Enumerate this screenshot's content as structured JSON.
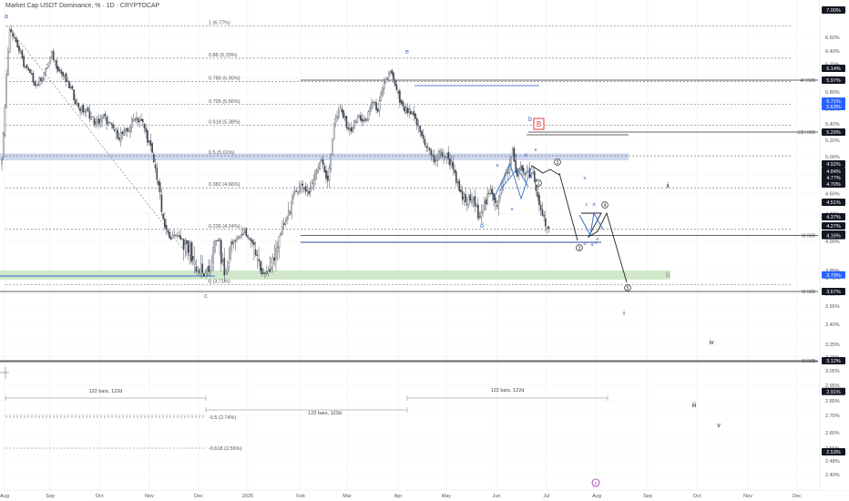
{
  "title": "Market Cap USDT Dominance, % · 1D · CRYPTOCAP",
  "chart_data": {
    "type": "candlestick",
    "title": "Market Cap USDT Dominance, % · 1D · CRYPTOCAP",
    "xlabel": "",
    "ylabel": "",
    "x_ticks": [
      "Aug",
      "Sep",
      "Oct",
      "Nov",
      "Dec",
      "2025",
      "Feb",
      "Mar",
      "Apr",
      "May",
      "Jun",
      "Jul",
      "Aug",
      "Sep",
      "Oct",
      "Nov",
      "Dec"
    ],
    "y_ticks": [
      "6.60%",
      "6.40%",
      "6.20%",
      "6.00%",
      "5.80%",
      "5.60%",
      "5.40%",
      "5.20%",
      "5.00%",
      "4.80%",
      "4.60%",
      "4.40%",
      "4.20%",
      "4.00%",
      "3.85%",
      "3.75%",
      "3.65%",
      "3.55%",
      "3.40%",
      "3.25%",
      "3.15%",
      "3.05%",
      "2.95%",
      "2.85%",
      "2.75%",
      "2.65%",
      "2.55%",
      "2.48%",
      "2.40%"
    ],
    "price_tags": [
      {
        "label": "7.00%",
        "style": "dark"
      },
      {
        "label": "6.14%",
        "style": "dark"
      },
      {
        "label": "5.97%",
        "style": "dark"
      },
      {
        "label": "5.71%",
        "style": "blue"
      },
      {
        "label": "5.63%",
        "style": "blue"
      },
      {
        "label": "5.29%",
        "style": "dark"
      },
      {
        "label": "4.92%",
        "style": "dark"
      },
      {
        "label": "4.84%",
        "style": "dark"
      },
      {
        "label": "4.77%",
        "style": "dark"
      },
      {
        "label": "4.70%",
        "style": "dark"
      },
      {
        "label": "4.51%",
        "style": "dark"
      },
      {
        "label": "4.37%",
        "style": "dark"
      },
      {
        "label": "4.27%",
        "style": "dark"
      },
      {
        "label": "4.20%",
        "style": "dark"
      },
      {
        "label": "4.16%",
        "style": "dark"
      },
      {
        "label": "3.79%",
        "style": "blue"
      },
      {
        "label": "3.67%",
        "style": "dark"
      },
      {
        "label": "3.12%",
        "style": "dark"
      },
      {
        "label": "2.91%",
        "style": "dark"
      },
      {
        "label": "2.53%",
        "style": "dark"
      }
    ],
    "fib_levels": [
      {
        "label": "1 (6.77%)",
        "value": 6.77
      },
      {
        "label": "0.88 (6.29%)",
        "value": 6.29
      },
      {
        "label": "0.786 (5.95%)",
        "value": 5.95
      },
      {
        "label": "0.705 (5.66%)",
        "value": 5.66
      },
      {
        "label": "0.618 (5.38%)",
        "value": 5.38
      },
      {
        "label": "0.5 (5.01%)",
        "value": 5.01
      },
      {
        "label": "0.382 (4.66%)",
        "value": 4.66
      },
      {
        "label": "0.236 (4.24%)",
        "value": 4.24
      },
      {
        "label": "0 (3.71%)",
        "value": 3.71
      }
    ],
    "ext_fib_levels": [
      {
        "label": "-0.5 (2.74%)",
        "value": 2.74
      },
      {
        "label": "-0.618 (2.55%)",
        "value": 2.55
      }
    ],
    "horizontal_levels": [
      {
        "label": "4H IMB",
        "value": 5.97
      },
      {
        "label": "12H IMB",
        "value": 5.29
      },
      {
        "label": "W IMB",
        "value": 4.16
      },
      {
        "label": "W IMB",
        "value": 3.67
      },
      {
        "label": "W IMB",
        "value": 3.12
      }
    ],
    "zones": [
      {
        "label": "",
        "color": "#c7d0ec",
        "from": 4.96,
        "to": 5.04
      },
      {
        "label": "D",
        "color": "#c9e4c1",
        "from": 3.74,
        "to": 3.85
      }
    ],
    "time_measures": [
      {
        "label": "122 bars, 122d"
      },
      {
        "label": "123 bars, 123d"
      },
      {
        "label": "122 bars, 122d"
      }
    ],
    "wave_labels": {
      "blue": [
        "a",
        "c",
        "e",
        "b",
        "d",
        "a",
        "b",
        "c",
        "d",
        "e",
        "a",
        "b",
        "c",
        "d",
        "e",
        "a",
        "c",
        "e"
      ],
      "circled": [
        "1",
        "2",
        "3",
        "4",
        "5"
      ],
      "box": "B",
      "roman": [
        "ii",
        "i",
        "iv",
        "iii",
        "v"
      ],
      "purple_circle": "c"
    },
    "series": [
      {
        "name": "USDT.D",
        "candles_count": 350
      }
    ],
    "colors": {
      "up": "#5a6470",
      "down": "#3c444e",
      "accent_blue": "#2962ff",
      "red": "#e53935",
      "zone_blue": "#c7d0ec",
      "zone_green": "#c9e4c1",
      "wave_blue": "#3b6fc4",
      "purple": "#9c27b0"
    }
  }
}
